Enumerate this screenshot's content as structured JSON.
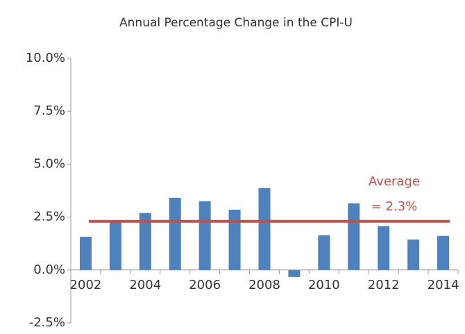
{
  "chart_data": {
    "type": "bar",
    "title": "Annual Percentage Change in the CPI-U",
    "categories": [
      "2002",
      null,
      "2004",
      null,
      "2006",
      null,
      "2008",
      null,
      "2010",
      null,
      "2012",
      null,
      "2014"
    ],
    "values": [
      1.57,
      2.33,
      2.69,
      3.41,
      3.25,
      2.85,
      3.87,
      -0.33,
      1.64,
      3.15,
      2.07,
      1.44,
      1.61
    ],
    "color": "#4f81bd",
    "ylim": [
      -2.5,
      10
    ],
    "yticks": [
      {
        "value": -2.5,
        "label": "-2.5%"
      },
      {
        "value": 0,
        "label": "0.0%"
      },
      {
        "value": 2.5,
        "label": "2.5%"
      },
      {
        "value": 5,
        "label": "5.0%"
      },
      {
        "value": 7.5,
        "label": "7.5%"
      },
      {
        "value": 10,
        "label": "10.0%"
      }
    ],
    "reference_line": {
      "value": 2.3,
      "color": "#c0504d",
      "label_lines": [
        "Average",
        "= 2.3%"
      ]
    }
  }
}
